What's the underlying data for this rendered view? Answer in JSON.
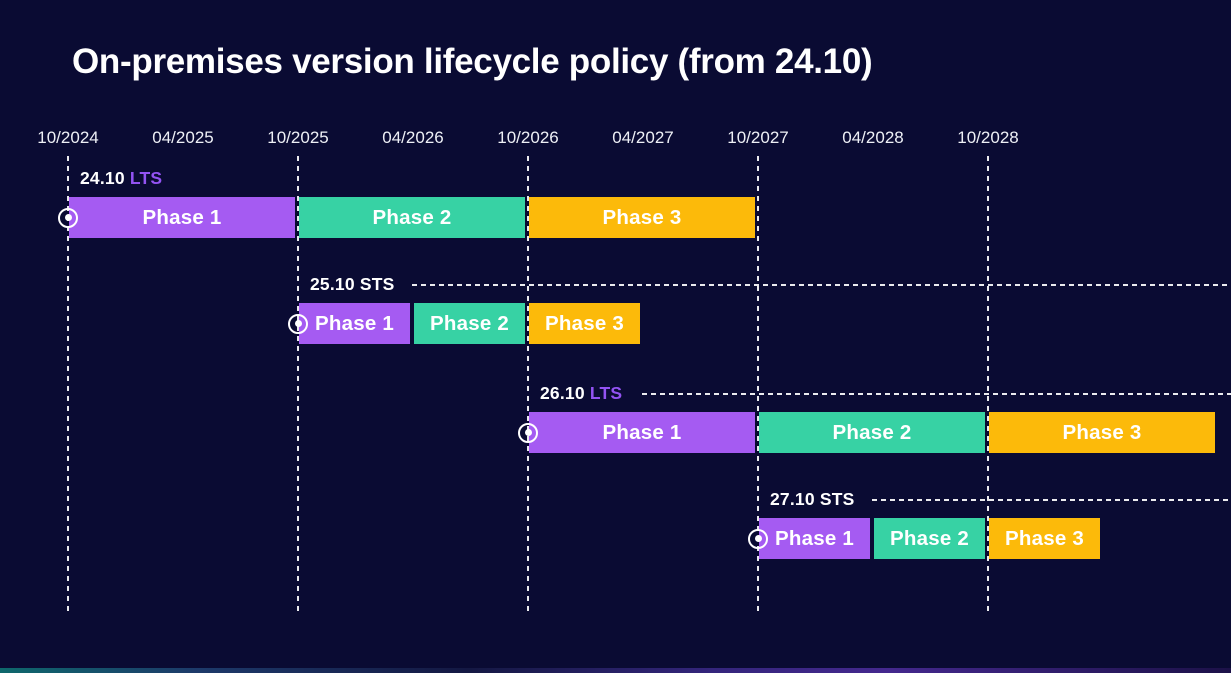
{
  "title": "On-premises version lifecycle policy (from 24.10)",
  "colors": {
    "background": "#0a0b33",
    "text": "#ffffff",
    "axis_text": "#eef0f6",
    "lts_accent": "#9353f3",
    "footer_gradient_left": "#0e686c",
    "footer_gradient_right": "#44288e"
  },
  "chart_data": {
    "type": "gantt",
    "title": "On-premises version lifecycle policy (from 24.10)",
    "x_axis": {
      "ticks": [
        "10/2024",
        "04/2025",
        "10/2025",
        "04/2026",
        "10/2026",
        "04/2027",
        "10/2027",
        "04/2028",
        "10/2028"
      ],
      "gridline_ticks": [
        "10/2024",
        "10/2025",
        "10/2026",
        "10/2027",
        "10/2028"
      ],
      "range_start": "10/2024",
      "range_end": "10/2028",
      "grid": "dashed-vertical-october"
    },
    "phase_colors": [
      "#a55bf2",
      "#37d2a4",
      "#fcba0a"
    ],
    "rows": [
      {
        "version": "24.10",
        "release_type": "LTS",
        "leader_line": false,
        "phases": [
          {
            "label": "Phase 1",
            "start": "10/2024",
            "end": "10/2025"
          },
          {
            "label": "Phase 2",
            "start": "10/2025",
            "end": "10/2026"
          },
          {
            "label": "Phase 3",
            "start": "10/2026",
            "end": "10/2027"
          }
        ]
      },
      {
        "version": "25.10",
        "release_type": "STS",
        "leader_line": true,
        "phases": [
          {
            "label": "Phase 1",
            "start": "10/2025",
            "end": "04/2026"
          },
          {
            "label": "Phase 2",
            "start": "04/2026",
            "end": "10/2026"
          },
          {
            "label": "Phase 3",
            "start": "10/2026",
            "end": "04/2027"
          }
        ]
      },
      {
        "version": "26.10",
        "release_type": "LTS",
        "leader_line": true,
        "phases": [
          {
            "label": "Phase 1",
            "start": "10/2026",
            "end": "10/2027"
          },
          {
            "label": "Phase 2",
            "start": "10/2027",
            "end": "10/2028"
          },
          {
            "label": "Phase 3",
            "start": "10/2028",
            "end": "10/2029"
          }
        ]
      },
      {
        "version": "27.10",
        "release_type": "STS",
        "leader_line": true,
        "phases": [
          {
            "label": "Phase 1",
            "start": "10/2027",
            "end": "04/2028"
          },
          {
            "label": "Phase 2",
            "start": "04/2028",
            "end": "10/2028"
          },
          {
            "label": "Phase 3",
            "start": "10/2028",
            "end": "04/2029"
          }
        ]
      }
    ]
  }
}
